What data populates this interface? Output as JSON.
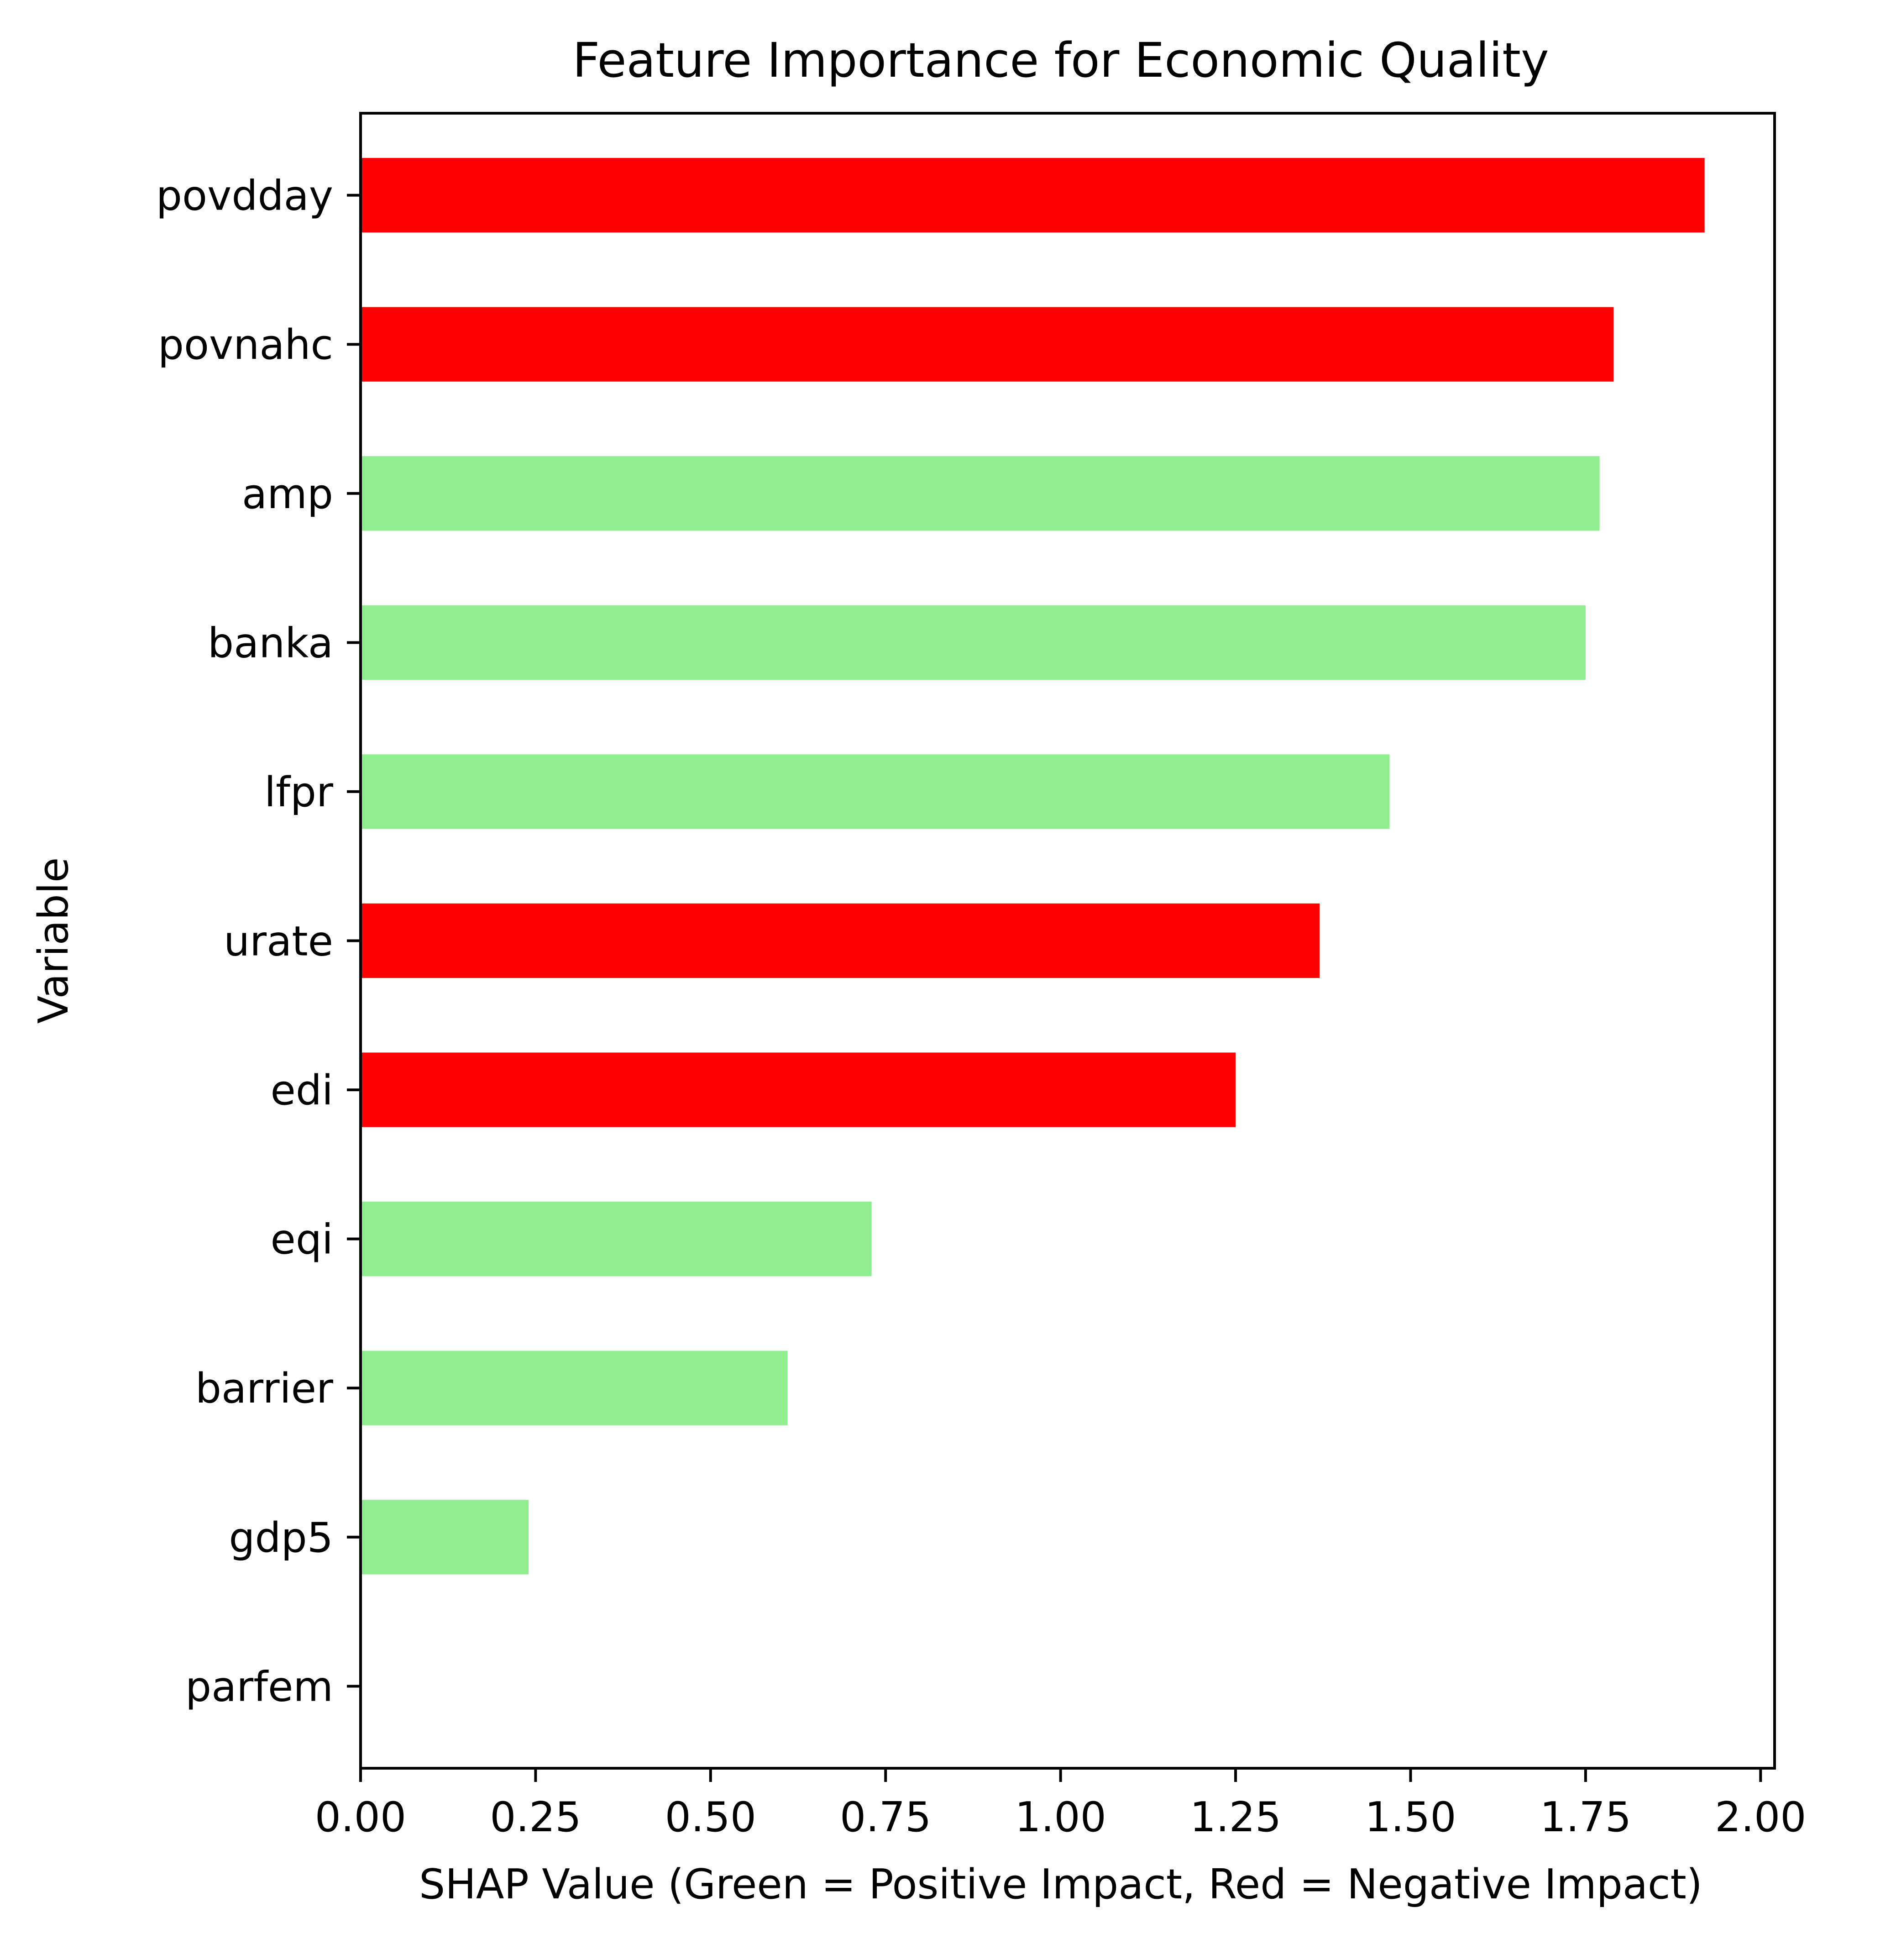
{
  "colors": {
    "positive": "#90EE90",
    "negative": "#FF0000",
    "axis": "#000000",
    "background": "#FFFFFF"
  },
  "chart_data": {
    "type": "bar",
    "orientation": "horizontal",
    "title": "Feature Importance for Economic Quality",
    "xlabel": "SHAP Value (Green = Positive Impact, Red = Negative Impact)",
    "ylabel": "Variable",
    "xlim": [
      0,
      2.02
    ],
    "xticks": [
      "0.00",
      "0.25",
      "0.50",
      "0.75",
      "1.00",
      "1.25",
      "1.50",
      "1.75",
      "2.00"
    ],
    "grid": false,
    "categories": [
      "povdday",
      "povnahc",
      "amp",
      "banka",
      "lfpr",
      "urate",
      "edi",
      "eqi",
      "barrier",
      "gdp5",
      "parfem"
    ],
    "values": [
      1.92,
      1.79,
      1.77,
      1.75,
      1.47,
      1.37,
      1.25,
      0.73,
      0.61,
      0.24,
      0.0
    ],
    "impact": [
      "negative",
      "negative",
      "positive",
      "positive",
      "positive",
      "negative",
      "negative",
      "positive",
      "positive",
      "positive",
      "positive"
    ]
  }
}
